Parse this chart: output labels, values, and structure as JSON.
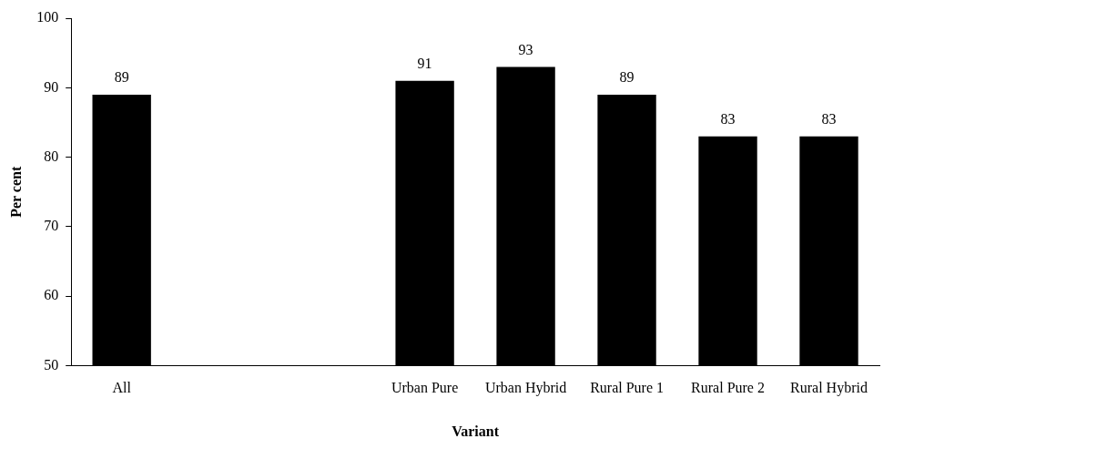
{
  "chart_data": {
    "type": "bar",
    "xlabel": "Variant",
    "ylabel": "Per cent",
    "categories": [
      "All",
      null,
      null,
      "Urban Pure",
      "Urban Hybrid",
      "Rural Pure 1",
      "Rural Pure 2",
      "Rural Hybrid"
    ],
    "values": [
      89,
      null,
      null,
      91,
      93,
      89,
      83,
      83
    ],
    "color": "#000000",
    "ylim": [
      50,
      100
    ],
    "yticks": [
      50,
      60,
      70,
      80,
      90,
      100
    ],
    "grid": false,
    "legend": false,
    "data_labels": true
  }
}
